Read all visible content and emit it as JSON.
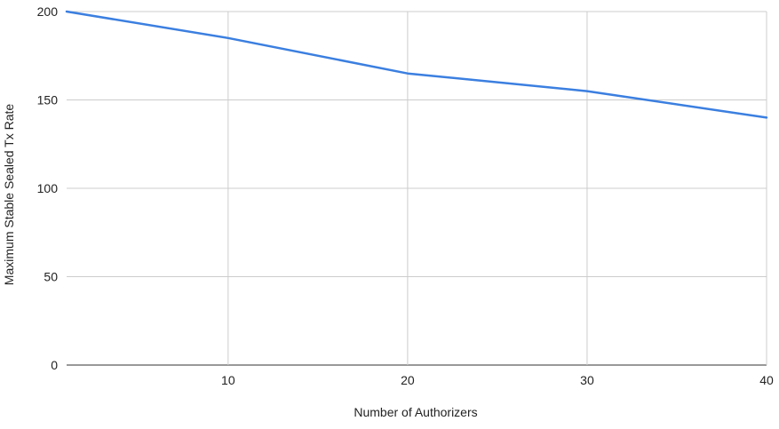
{
  "chart_data": {
    "type": "line",
    "title": "",
    "xlabel": "Number of Authorizers",
    "ylabel": "Maximum Stable Sealed Tx Rate",
    "xlim": [
      1,
      40
    ],
    "ylim": [
      0,
      200
    ],
    "x_ticks": [
      10,
      20,
      30,
      40
    ],
    "y_ticks": [
      0,
      50,
      100,
      150,
      200
    ],
    "grid": true,
    "legend": "none",
    "series": [
      {
        "color": "#3b7fe0",
        "x": [
          1,
          10,
          20,
          30,
          40
        ],
        "y": [
          200,
          185,
          165,
          155,
          140
        ]
      }
    ]
  }
}
